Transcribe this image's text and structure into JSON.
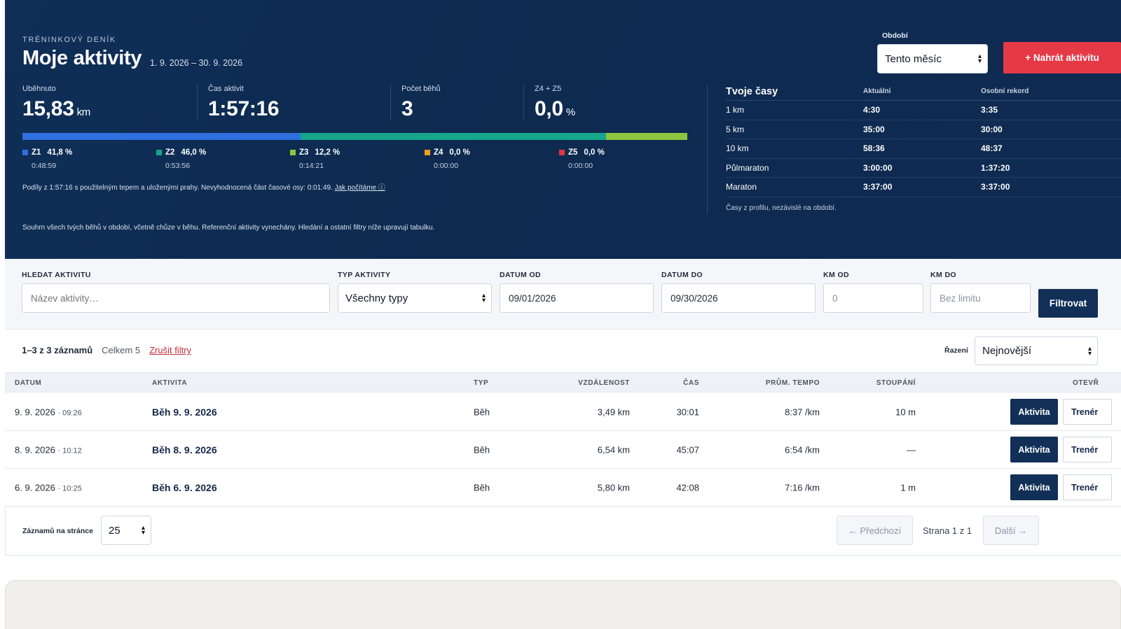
{
  "hero": {
    "eyebrow": "TRÉNINKOVÝ DENÍK",
    "title": "Moje aktivity",
    "date_range": "1. 9. 2026 – 30. 9. 2026",
    "period_label": "Období",
    "period_value": "Tento měsíc",
    "upload_label": "+ Nahrát aktivitu",
    "stats": [
      {
        "label": "Uběhnuto",
        "value": "15,83",
        "unit": "km"
      },
      {
        "label": "Čas aktivit",
        "value": "1:57:16",
        "unit": ""
      },
      {
        "label": "Počet běhů",
        "value": "3",
        "unit": ""
      },
      {
        "label": "Z4 + Z5",
        "value": "0,0",
        "unit": "%"
      }
    ],
    "zones": [
      {
        "name": "Z1",
        "pct": "41,8 %",
        "share": 41.8,
        "time": "0:48:59",
        "color": "#2f6fe0"
      },
      {
        "name": "Z2",
        "pct": "46,0 %",
        "share": 46.0,
        "time": "0:53:56",
        "color": "#16a68b"
      },
      {
        "name": "Z3",
        "pct": "12,2 %",
        "share": 12.2,
        "time": "0:14:21",
        "color": "#8cc63f"
      },
      {
        "name": "Z4",
        "pct": "0,0 %",
        "share": 0,
        "time": "0:00:00",
        "color": "#f29d1d"
      },
      {
        "name": "Z5",
        "pct": "0,0 %",
        "share": 0,
        "time": "0:00:00",
        "color": "#e0353f"
      }
    ],
    "zone_note": "Podíly z 1:57:16 s použitelným tepem a uloženými prahy. Nevyhodnocená část časové osy: 0:01:49.",
    "zone_note_link": "Jak počítáme ⓘ",
    "summary_note": "Souhrn všech tvých běhů v období, včetně chůze v běhu. Referenční aktivity vynechány. Hledání a ostatní filtry níže upravují tabulku."
  },
  "times": {
    "title": "Tvoje časy",
    "col_current": "Aktuální",
    "col_pb": "Osobní rekord",
    "rows": [
      {
        "dist": "1 km",
        "current": "4:30",
        "pb": "3:35"
      },
      {
        "dist": "5 km",
        "current": "35:00",
        "pb": "30:00"
      },
      {
        "dist": "10 km",
        "current": "58:36",
        "pb": "48:37"
      },
      {
        "dist": "Půlmaraton",
        "current": "3:00:00",
        "pb": "1:37:20"
      },
      {
        "dist": "Maraton",
        "current": "3:37:00",
        "pb": "3:37:00"
      }
    ],
    "note": "Časy z profilu, nezávislé na období."
  },
  "filters": {
    "search_label": "HLEDAT AKTIVITU",
    "search_placeholder": "Název aktivity…",
    "type_label": "TYP AKTIVITY",
    "type_value": "Všechny typy",
    "from_label": "DATUM OD",
    "from_value": "09/01/2026",
    "to_label": "DATUM DO",
    "to_value": "09/30/2026",
    "km_from_label": "KM OD",
    "km_from_placeholder": "0",
    "km_to_label": "KM DO",
    "km_to_placeholder": "Bez limitu",
    "submit_label": "Filtrovat"
  },
  "list": {
    "count": "1–3 z 3 záznamů",
    "total": "Celkem 5",
    "clear": "Zrušit filtry",
    "sort_label": "Řazení",
    "sort_value": "Nejnovější"
  },
  "table": {
    "headers": {
      "date": "DATUM",
      "activity": "AKTIVITA",
      "type": "TYP",
      "distance": "VZDÁLENOST",
      "time": "ČAS",
      "pace": "PRŮM. TEMPO",
      "elev": "STOUPÁNÍ",
      "open": "OTEVŘ"
    },
    "rows": [
      {
        "date": "9. 9. 2026",
        "clock": "· 09:26",
        "name": "Běh 9. 9. 2026",
        "type": "Běh",
        "distance": "3,49 km",
        "time": "30:01",
        "pace": "8:37 /km",
        "elev": "10 m"
      },
      {
        "date": "8. 9. 2026",
        "clock": "· 10:12",
        "name": "Běh 8. 9. 2026",
        "type": "Běh",
        "distance": "6,54 km",
        "time": "45:07",
        "pace": "6:54 /km",
        "elev": "—"
      },
      {
        "date": "6. 9. 2026",
        "clock": "· 10:25",
        "name": "Běh 6. 9. 2026",
        "type": "Běh",
        "distance": "5,80 km",
        "time": "42:08",
        "pace": "7:16 /km",
        "elev": "1 m"
      }
    ],
    "btn_activity": "Aktivita",
    "btn_coach": "Trenér"
  },
  "pager": {
    "per_page_label": "Záznamů na stránce",
    "per_page_value": "25",
    "prev": "← Předchozí",
    "info": "Strana 1 z 1",
    "next": "Další →"
  }
}
